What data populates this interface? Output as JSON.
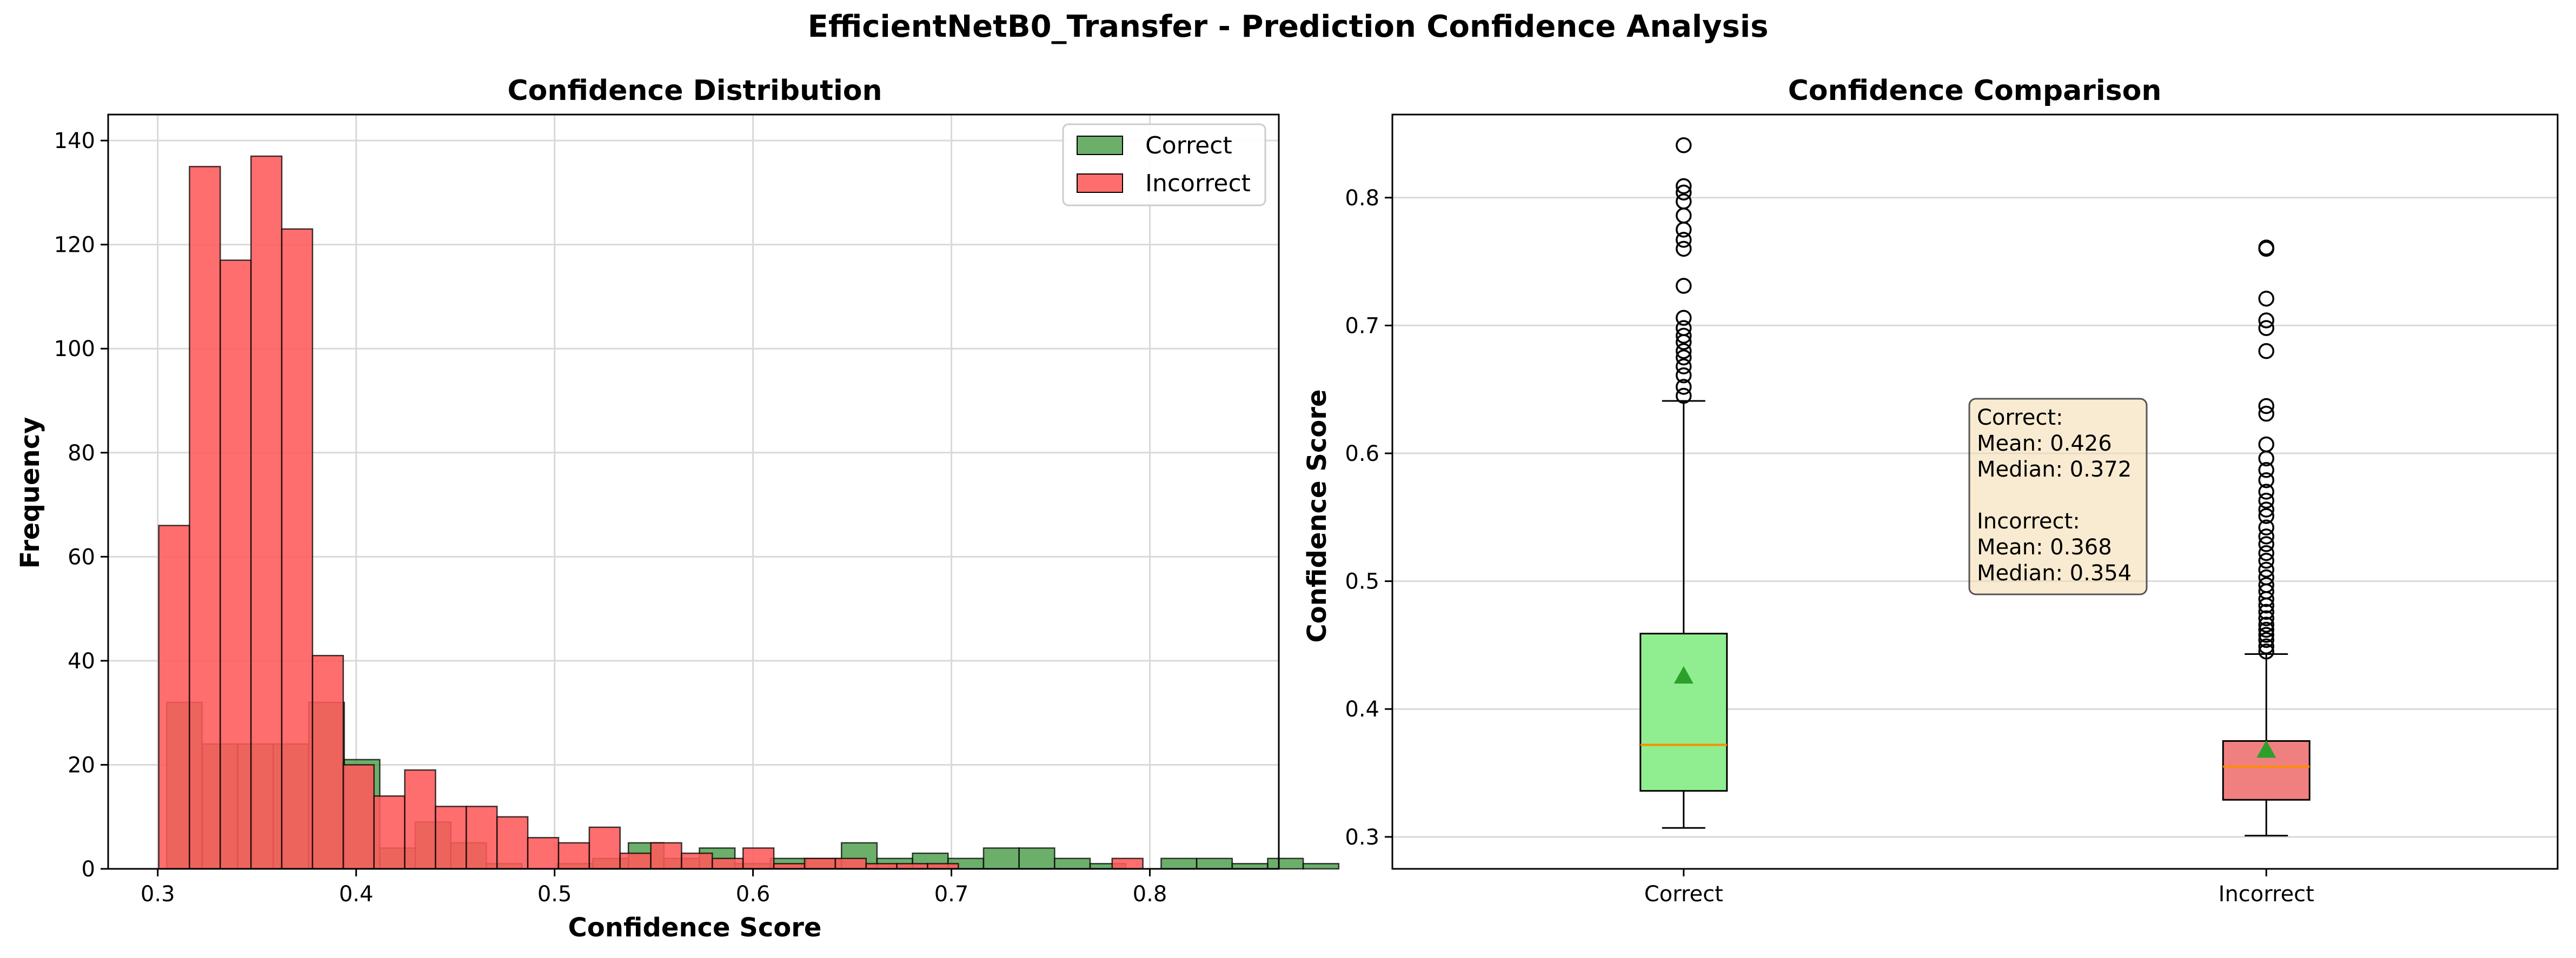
{
  "figure": {
    "suptitle": "EfficientNetB0_Transfer - Prediction Confidence Analysis",
    "colors": {
      "correct": "#4a9e4a",
      "incorrect": "#ff5a5a",
      "box_correct": "#90ee90",
      "box_incorrect": "#f08080",
      "median_line": "#ff8c00",
      "mean_marker": "#2ca02c",
      "stats_box_bg": "#f5deb3",
      "grid": "#d9d9d9"
    }
  },
  "chart_data": [
    {
      "type": "bar",
      "subtype": "overlaid-histogram",
      "title": "Confidence Distribution",
      "xlabel": "Confidence Score",
      "ylabel": "Frequency",
      "xlim": [
        0.275,
        0.865
      ],
      "ylim": [
        0,
        145
      ],
      "xticks": [
        "0.3",
        "0.4",
        "0.5",
        "0.6",
        "0.7",
        "0.8"
      ],
      "yticks": [
        "0",
        "20",
        "40",
        "60",
        "80",
        "100",
        "120",
        "140"
      ],
      "grid": true,
      "legend": {
        "placement": "top-right"
      },
      "series": [
        {
          "name": "Correct",
          "bin_width": 0.0179,
          "x_start": 0.3045,
          "values": [
            32,
            24,
            24,
            24,
            32,
            21,
            4,
            9,
            5,
            1,
            0,
            1,
            2,
            5,
            2,
            4,
            1,
            2,
            2,
            5,
            2,
            3,
            2,
            4,
            4,
            2,
            1,
            0,
            2,
            2,
            1,
            2,
            1
          ]
        },
        {
          "name": "Incorrect",
          "bin_width": 0.0155,
          "x_start": 0.3005,
          "values": [
            66,
            135,
            117,
            137,
            123,
            41,
            20,
            14,
            19,
            12,
            12,
            10,
            6,
            5,
            8,
            3,
            5,
            3,
            2,
            4,
            1,
            2,
            2,
            1,
            1,
            1,
            0,
            0,
            0,
            0,
            0,
            2
          ]
        }
      ]
    },
    {
      "type": "boxplot",
      "title": "Confidence Comparison",
      "xlabel": "",
      "ylabel": "Confidence Score",
      "ylim": [
        0.275,
        0.865
      ],
      "yticks": [
        "0.3",
        "0.4",
        "0.5",
        "0.6",
        "0.7",
        "0.8"
      ],
      "grid": true,
      "categories": [
        "Correct",
        "Incorrect"
      ],
      "boxes": [
        {
          "name": "Correct",
          "whisker_low": 0.307,
          "q1": 0.336,
          "median": 0.372,
          "q3": 0.459,
          "whisker_high": 0.641,
          "mean": 0.426,
          "outliers": [
            0.645,
            0.652,
            0.661,
            0.668,
            0.675,
            0.68,
            0.687,
            0.692,
            0.698,
            0.706,
            0.731,
            0.76,
            0.767,
            0.775,
            0.786,
            0.797,
            0.804,
            0.809,
            0.841
          ]
        },
        {
          "name": "Incorrect",
          "whisker_low": 0.301,
          "q1": 0.329,
          "median": 0.355,
          "q3": 0.375,
          "whisker_high": 0.443,
          "mean": 0.368,
          "outliers": [
            0.445,
            0.449,
            0.454,
            0.458,
            0.462,
            0.466,
            0.471,
            0.476,
            0.481,
            0.486,
            0.492,
            0.497,
            0.503,
            0.509,
            0.516,
            0.522,
            0.529,
            0.535,
            0.542,
            0.551,
            0.556,
            0.563,
            0.57,
            0.579,
            0.587,
            0.596,
            0.607,
            0.631,
            0.637,
            0.68,
            0.698,
            0.704,
            0.721,
            0.76,
            0.761
          ]
        }
      ],
      "stats_box": {
        "lines": [
          "Correct:",
          "Mean: 0.426",
          "Median: 0.372",
          "",
          "Incorrect:",
          "Mean: 0.368",
          "Median: 0.354"
        ]
      }
    }
  ]
}
